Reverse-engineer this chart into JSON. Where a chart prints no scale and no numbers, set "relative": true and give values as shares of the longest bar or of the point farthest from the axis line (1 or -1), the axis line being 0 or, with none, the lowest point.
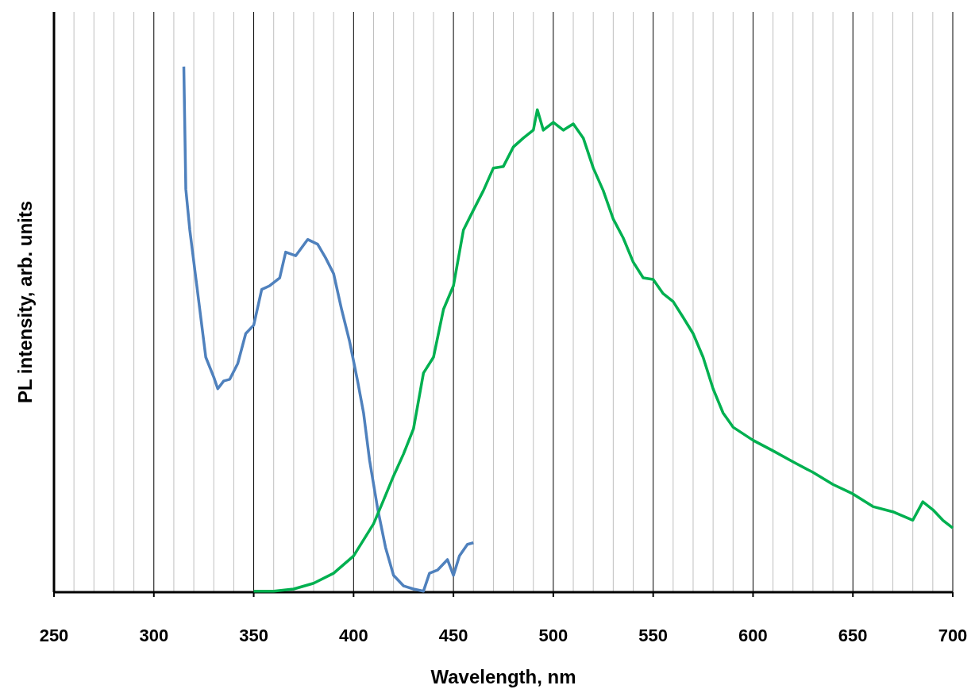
{
  "chart_data": {
    "type": "line",
    "relative": true,
    "xlabel": "Wavelength, nm",
    "ylabel": "PL intensity, arb. units",
    "xlim": [
      250,
      700
    ],
    "xticks": [
      250,
      300,
      350,
      400,
      450,
      500,
      550,
      600,
      650,
      700
    ],
    "grid": "x",
    "line_style": "solid",
    "series": [
      {
        "color": "#4f81bd",
        "x": [
          315,
          316,
          318,
          322,
          326,
          330,
          332,
          335,
          338,
          342,
          346,
          350,
          354,
          358,
          363,
          366,
          371,
          377,
          382,
          386,
          390,
          394,
          398,
          402,
          405,
          408,
          412,
          416,
          420,
          425,
          430,
          435,
          438,
          442,
          447,
          450,
          453,
          457,
          460
        ],
        "values": [
          1.0,
          0.767,
          0.689,
          0.568,
          0.447,
          0.409,
          0.387,
          0.402,
          0.405,
          0.435,
          0.492,
          0.508,
          0.576,
          0.583,
          0.598,
          0.647,
          0.64,
          0.671,
          0.662,
          0.636,
          0.606,
          0.538,
          0.477,
          0.402,
          0.341,
          0.251,
          0.16,
          0.085,
          0.032,
          0.012,
          0.006,
          0.002,
          0.036,
          0.042,
          0.062,
          0.032,
          0.069,
          0.091,
          0.094
        ]
      },
      {
        "color": "#00b050",
        "x": [
          350,
          360,
          370,
          380,
          390,
          400,
          410,
          415,
          420,
          425,
          430,
          435,
          440,
          445,
          450,
          455,
          460,
          465,
          470,
          475,
          480,
          485,
          490,
          492,
          495,
          500,
          505,
          510,
          515,
          520,
          525,
          530,
          535,
          540,
          545,
          550,
          555,
          560,
          565,
          570,
          575,
          580,
          585,
          590,
          600,
          610,
          620,
          630,
          640,
          650,
          660,
          670,
          680,
          685,
          690,
          695,
          700
        ],
        "values": [
          0.002,
          0.002,
          0.006,
          0.017,
          0.036,
          0.069,
          0.13,
          0.175,
          0.221,
          0.263,
          0.311,
          0.417,
          0.447,
          0.538,
          0.583,
          0.689,
          0.727,
          0.764,
          0.807,
          0.81,
          0.847,
          0.864,
          0.879,
          0.918,
          0.879,
          0.894,
          0.879,
          0.891,
          0.864,
          0.807,
          0.764,
          0.71,
          0.674,
          0.628,
          0.598,
          0.595,
          0.568,
          0.553,
          0.523,
          0.492,
          0.447,
          0.387,
          0.341,
          0.314,
          0.289,
          0.269,
          0.248,
          0.228,
          0.205,
          0.187,
          0.163,
          0.153,
          0.137,
          0.172,
          0.157,
          0.137,
          0.122
        ]
      }
    ]
  }
}
